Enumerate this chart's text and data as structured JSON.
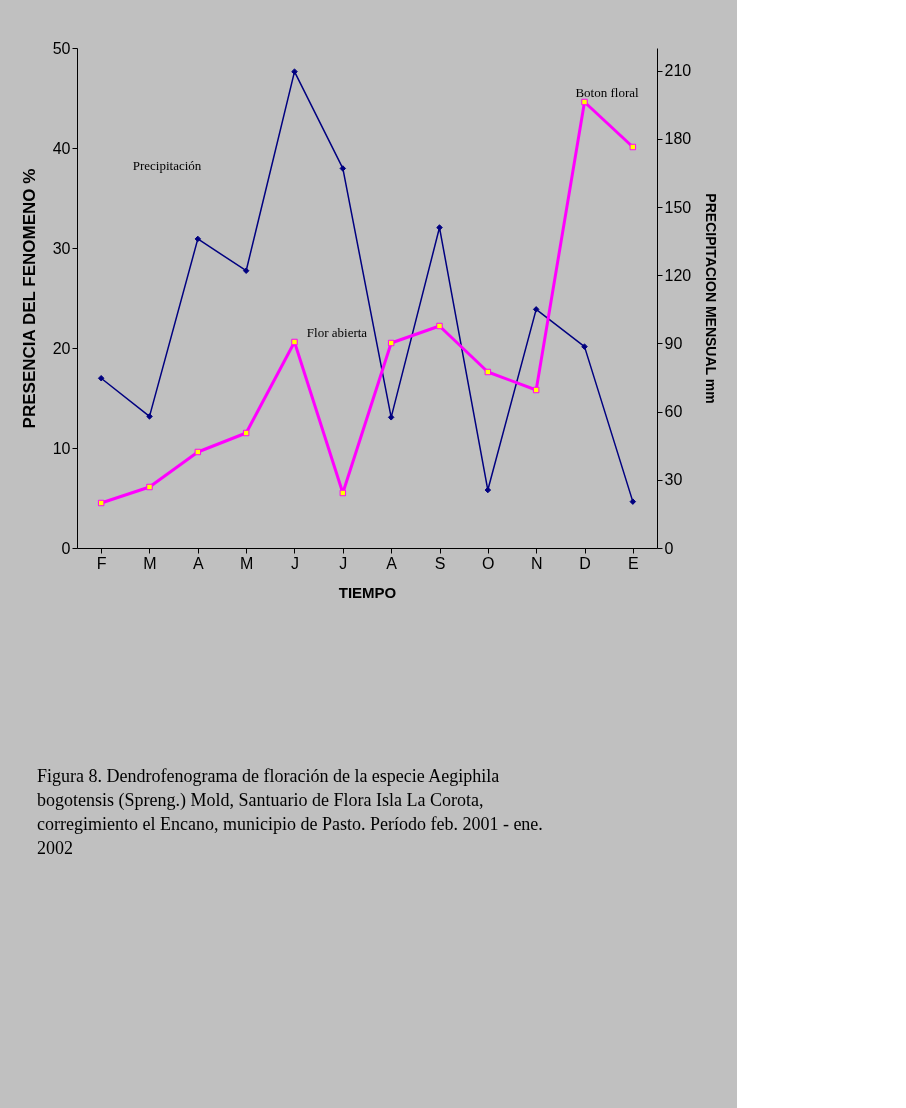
{
  "chart_data": {
    "type": "line",
    "xlabel": "TIEMPO",
    "ylabel": "PRESENCIA DEL FENOMENO %",
    "y2label": "PRECIPITACION MENSUAL mm",
    "categories": [
      "F",
      "M",
      "A",
      "M",
      "J",
      "J",
      "A",
      "S",
      "O",
      "N",
      "D",
      "E"
    ],
    "series": [
      {
        "color": "#000080",
        "marker": "diamond",
        "axis": "y2",
        "values": [
          74.7,
          57.9,
          136,
          122,
          209.6,
          167,
          57.5,
          141,
          25.5,
          105,
          88.6,
          20.4
        ]
      },
      {
        "color": "#ff00ff",
        "marker": "square",
        "values": [
          4.5,
          6.1,
          9.6,
          11.5,
          20.6,
          5.5,
          20.5,
          22.2,
          17.6,
          15.8,
          44.6,
          40.1
        ]
      }
    ],
    "ylim": [
      0,
      50
    ],
    "yticks": [
      0,
      10,
      20,
      30,
      40,
      50
    ],
    "y2lim": [
      0,
      220
    ],
    "y2ticks": [
      0,
      30,
      60,
      90,
      120,
      150,
      180,
      210
    ],
    "grid": false,
    "annotations": [
      "Precipitación",
      "Flor abierta",
      "Boton floral",
      "Figura 8.  Dendrofenograma de floración de la especie Aegiphila bogotensis (Spreng.) Mold, Santuario de Flora Isla La Corota, corregimiento el Encano, municipio de Pasto. Período feb. 2001 - ene. 2002"
    ]
  }
}
